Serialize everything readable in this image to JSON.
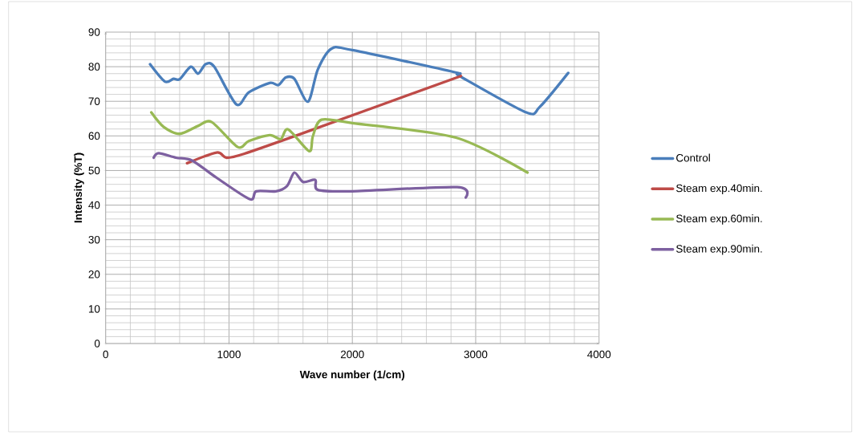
{
  "chart_data": {
    "type": "line",
    "xlabel": "Wave number (1/cm)",
    "ylabel": "Intensity (%T)",
    "xlim": [
      0,
      4000
    ],
    "ylim": [
      0,
      90
    ],
    "xticks": [
      0,
      1000,
      2000,
      3000,
      4000
    ],
    "yticks": [
      0,
      10,
      20,
      30,
      40,
      50,
      60,
      70,
      80,
      90
    ],
    "grid": true,
    "legend": "right",
    "marker": "none",
    "line_style": "solid",
    "series": [
      {
        "name": "Control",
        "color": "#4a7ebb",
        "x": [
          360,
          480,
          550,
          600,
          690,
          750,
          810,
          880,
          1060,
          1160,
          1330,
          1400,
          1460,
          1530,
          1640,
          1720,
          1830,
          2000,
          2830,
          2870,
          3410,
          3520,
          3750
        ],
        "values": [
          80.7,
          75.7,
          76.5,
          76.4,
          80.0,
          78.0,
          80.7,
          80.0,
          69.1,
          72.6,
          75.3,
          74.7,
          76.9,
          76.5,
          69.9,
          79.2,
          85.2,
          84.8,
          78.4,
          77.3,
          66.8,
          68.4,
          78.2
        ]
      },
      {
        "name": "Steam exp.40min.",
        "color": "#be4b48",
        "x": [
          660,
          900,
          980,
          1120,
          1600,
          2880
        ],
        "values": [
          52.1,
          55.2,
          53.7,
          54.8,
          60.8,
          77.3
        ]
      },
      {
        "name": "Steam exp.60min.",
        "color": "#98b954",
        "x": [
          370,
          470,
          600,
          750,
          860,
          1070,
          1160,
          1330,
          1420,
          1480,
          1650,
          1680,
          1750,
          2000,
          2840,
          3420
        ],
        "values": [
          66.8,
          62.6,
          60.6,
          62.9,
          64.0,
          56.8,
          58.5,
          60.2,
          59.1,
          61.9,
          55.6,
          59.9,
          64.7,
          63.7,
          59.5,
          49.4
        ]
      },
      {
        "name": "Steam exp.90min.",
        "color": "#7d60a0",
        "x": [
          390,
          430,
          570,
          700,
          900,
          1170,
          1220,
          1380,
          1470,
          1530,
          1600,
          1700,
          1720,
          2000,
          2850,
          2920
        ],
        "values": [
          53.7,
          55.0,
          53.7,
          52.9,
          47.9,
          41.7,
          44.0,
          44.0,
          45.5,
          49.4,
          46.7,
          47.3,
          44.4,
          44.0,
          45.2,
          42.2
        ]
      }
    ]
  }
}
